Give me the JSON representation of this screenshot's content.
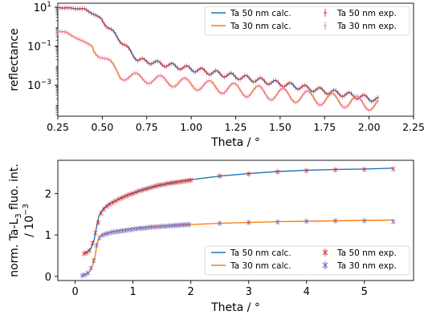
{
  "chart_data": [
    {
      "type": "line",
      "xlabel": "Theta / °",
      "ylabel": "reflectance",
      "xlim": [
        0.25,
        2.25
      ],
      "yscale": "log",
      "ylim_log10": [
        -4.6,
        1.2
      ],
      "xticks": [
        "0.25",
        "0.50",
        "0.75",
        "1.00",
        "1.25",
        "1.50",
        "1.75",
        "2.00",
        "2.25"
      ],
      "yticks": [
        {
          "base": "10",
          "exp": "1",
          "value_log10": 1
        },
        {
          "base": "10",
          "exp": "−1",
          "value_log10": -1
        },
        {
          "base": "10",
          "exp": "−3",
          "value_log10": -3
        }
      ],
      "grid": false,
      "legend_position": "top-right",
      "series": [
        {
          "name": "Ta 50 nm calc.",
          "kind": "line",
          "color": "#1f77b4",
          "x_range": [
            0.25,
            2.05
          ],
          "film_thickness": 50
        },
        {
          "name": "Ta 30 nm calc.",
          "kind": "line",
          "color": "#ff7f0e",
          "x_range": [
            0.25,
            2.05
          ],
          "film_thickness": 30
        },
        {
          "name": "Ta 50 nm exp.",
          "kind": "errorbar",
          "color": "#d62728",
          "x_range": [
            0.25,
            2.05
          ]
        },
        {
          "name": "Ta 30 nm exp.",
          "kind": "errorbar",
          "color": "#e377c2",
          "x_range": [
            0.25,
            2.05
          ]
        }
      ]
    },
    {
      "type": "line",
      "xlabel": "Theta / °",
      "ylabel_line1": "norm. Ta-L",
      "ylabel_sub": "3",
      "ylabel_line1_rest": " fluo. int.",
      "ylabel_line2": "/ 10",
      "ylabel_line2_exp": "−3",
      "xlim": [
        -0.3,
        5.85
      ],
      "ylim": [
        -0.1,
        2.8
      ],
      "xticks": [
        0,
        1,
        2,
        3,
        4,
        5
      ],
      "yticks": [
        0,
        1,
        2
      ],
      "grid": false,
      "legend_position": "bottom-right",
      "series": [
        {
          "name": "Ta 50 nm calc.",
          "kind": "line",
          "color": "#1f77b4",
          "x": [
            0.15,
            0.22,
            0.28,
            0.33,
            0.37,
            0.41,
            0.45,
            0.5,
            0.55,
            0.6,
            0.7,
            0.8,
            0.9,
            1.0,
            1.2,
            1.4,
            1.6,
            1.8,
            2.0,
            2.5,
            3.0,
            3.5,
            4.0,
            4.5,
            5.0,
            5.5
          ],
          "y": [
            0.55,
            0.6,
            0.7,
            0.9,
            1.2,
            1.45,
            1.57,
            1.65,
            1.71,
            1.76,
            1.83,
            1.9,
            1.96,
            2.01,
            2.1,
            2.18,
            2.24,
            2.29,
            2.33,
            2.42,
            2.48,
            2.53,
            2.56,
            2.58,
            2.59,
            2.61
          ]
        },
        {
          "name": "Ta 30 nm calc.",
          "kind": "line",
          "color": "#ff7f0e",
          "x": [
            0.12,
            0.2,
            0.26,
            0.3,
            0.34,
            0.38,
            0.42,
            0.46,
            0.5,
            0.6,
            0.7,
            0.8,
            1.0,
            1.2,
            1.4,
            1.6,
            1.8,
            2.0,
            2.5,
            3.0,
            3.5,
            4.0,
            4.5,
            5.0,
            5.5
          ],
          "y": [
            0.02,
            0.06,
            0.12,
            0.25,
            0.45,
            0.8,
            0.95,
            1.0,
            1.02,
            1.06,
            1.09,
            1.11,
            1.15,
            1.18,
            1.2,
            1.22,
            1.24,
            1.25,
            1.28,
            1.3,
            1.32,
            1.33,
            1.34,
            1.35,
            1.36
          ]
        },
        {
          "name": "Ta 50 nm exp.",
          "kind": "errorbar",
          "color": "#d62728",
          "x": [
            0.15,
            0.2,
            0.25,
            0.3,
            0.35,
            0.4,
            0.45,
            0.5,
            0.55,
            0.6,
            0.65,
            0.7,
            0.75,
            0.8,
            0.85,
            0.9,
            0.95,
            1.0,
            1.05,
            1.1,
            1.15,
            1.2,
            1.25,
            1.3,
            1.35,
            1.4,
            1.45,
            1.5,
            1.55,
            1.6,
            1.65,
            1.7,
            1.75,
            1.8,
            1.85,
            1.9,
            1.95,
            2.0,
            2.5,
            3.0,
            3.5,
            4.0,
            4.5,
            5.0,
            5.5
          ],
          "y": [
            0.55,
            0.57,
            0.62,
            0.8,
            1.05,
            1.3,
            1.52,
            1.62,
            1.69,
            1.74,
            1.78,
            1.82,
            1.86,
            1.89,
            1.92,
            1.95,
            1.98,
            2.0,
            2.03,
            2.06,
            2.08,
            2.1,
            2.12,
            2.14,
            2.16,
            2.18,
            2.2,
            2.21,
            2.22,
            2.24,
            2.25,
            2.26,
            2.27,
            2.28,
            2.29,
            2.3,
            2.31,
            2.32,
            2.42,
            2.47,
            2.52,
            2.55,
            2.57,
            2.58,
            2.59
          ]
        },
        {
          "name": "Ta 30 nm exp.",
          "kind": "errorbar",
          "color": "#5a5acd",
          "x": [
            0.12,
            0.17,
            0.22,
            0.27,
            0.32,
            0.37,
            0.42,
            0.47,
            0.52,
            0.57,
            0.62,
            0.67,
            0.72,
            0.77,
            0.82,
            0.87,
            0.92,
            0.97,
            1.02,
            1.07,
            1.12,
            1.17,
            1.22,
            1.27,
            1.32,
            1.37,
            1.42,
            1.47,
            1.52,
            1.57,
            1.62,
            1.67,
            1.72,
            1.77,
            1.82,
            1.87,
            1.92,
            1.97,
            2.5,
            3.0,
            3.5,
            4.0,
            4.5,
            5.0,
            5.5
          ],
          "y": [
            0.02,
            0.04,
            0.08,
            0.2,
            0.38,
            0.75,
            0.93,
            0.99,
            1.02,
            1.04,
            1.06,
            1.07,
            1.08,
            1.09,
            1.1,
            1.11,
            1.12,
            1.13,
            1.14,
            1.15,
            1.16,
            1.16,
            1.17,
            1.18,
            1.19,
            1.19,
            1.2,
            1.2,
            1.21,
            1.21,
            1.22,
            1.22,
            1.23,
            1.23,
            1.24,
            1.24,
            1.25,
            1.25,
            1.28,
            1.3,
            1.31,
            1.33,
            1.34,
            1.34,
            1.32
          ]
        }
      ]
    }
  ]
}
